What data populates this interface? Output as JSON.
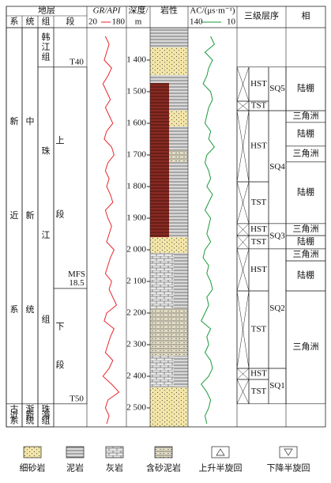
{
  "header": {
    "strata": "地层",
    "system": "系",
    "series": "统",
    "formation": "组",
    "member": "段",
    "gr_title": "GR/API",
    "depth_title": [
      "深度/",
      "m"
    ],
    "lithology": "岩性",
    "ac_title": "AC/(μs·m⁻¹)",
    "sequence": "三级层序",
    "facies": "相"
  },
  "depth_axis": {
    "lim": [
      1297.5,
      2560
    ],
    "ticks": [
      {
        "value": 1400,
        "label": "1 400"
      },
      {
        "value": 1500,
        "label": "1 500"
      },
      {
        "value": 1600,
        "label": "1 600"
      },
      {
        "value": 1700,
        "label": "1 700"
      },
      {
        "value": 1800,
        "label": "1 800"
      },
      {
        "value": 1900,
        "label": "1 900"
      },
      {
        "value": 2000,
        "label": "2 000"
      },
      {
        "value": 2100,
        "label": "2 100"
      },
      {
        "value": 2200,
        "label": "2 200"
      },
      {
        "value": 2300,
        "label": "2 300"
      },
      {
        "value": 2400,
        "label": "2 400"
      },
      {
        "value": 2500,
        "label": "2 500"
      }
    ]
  },
  "curve_depth": [
    1325,
    1350,
    1375,
    1400,
    1425,
    1450,
    1475,
    1500,
    1525,
    1550,
    1575,
    1600,
    1625,
    1650,
    1675,
    1700,
    1725,
    1750,
    1775,
    1800,
    1825,
    1850,
    1875,
    1900,
    1925,
    1950,
    1975,
    2000,
    2025,
    2050,
    2075,
    2100,
    2125,
    2150,
    2175,
    2200,
    2225,
    2250,
    2275,
    2300,
    2325,
    2350,
    2375,
    2400,
    2425,
    2450,
    2475,
    2500,
    2525,
    2550
  ],
  "gr": {
    "lim": [
      20,
      180
    ],
    "color": "#e8262b",
    "values": [
      95,
      110,
      100,
      90,
      120,
      105,
      85,
      100,
      115,
      95,
      110,
      125,
      100,
      90,
      120,
      130,
      105,
      95,
      110,
      100,
      115,
      125,
      95,
      105,
      120,
      110,
      100,
      130,
      115,
      105,
      95,
      120,
      110,
      125,
      140,
      100,
      90,
      130,
      115,
      105,
      95,
      125,
      110,
      85,
      120,
      150,
      105,
      95,
      110,
      100
    ]
  },
  "ac": {
    "lim": [
      140,
      10
    ],
    "color": "#1a9a3a",
    "values": [
      80,
      70,
      95,
      75,
      85,
      90,
      100,
      80,
      75,
      85,
      90,
      95,
      80,
      85,
      70,
      90,
      95,
      85,
      80,
      90,
      75,
      85,
      95,
      80,
      85,
      90,
      80,
      95,
      100,
      85,
      90,
      80,
      75,
      90,
      85,
      95,
      105,
      80,
      90,
      85,
      95,
      80,
      75,
      85,
      105,
      90,
      80,
      85,
      95,
      90
    ]
  },
  "systems": [
    {
      "label": "新近系",
      "top": 1297.5,
      "base": 2487
    },
    {
      "label": "古近系",
      "top": 2487,
      "base": 2560
    }
  ],
  "series": [
    {
      "label": "中新统",
      "top": 1297.5,
      "base": 2487
    },
    {
      "label": "渐新统",
      "top": 2487,
      "base": 2560
    }
  ],
  "formations": [
    {
      "label": "韩江组",
      "top": 1297.5,
      "base": 1422
    },
    {
      "label": "珠江组",
      "top": 1422,
      "base": 2487
    },
    {
      "label": "珠海组",
      "top": 2487,
      "base": 2560
    }
  ],
  "members": [
    {
      "label": "上段",
      "top": 1422,
      "base": 2122
    },
    {
      "label": "下段",
      "top": 2122,
      "base": 2487
    }
  ],
  "markers": [
    {
      "label": "T40",
      "depth": 1422
    },
    {
      "label": "MFS 18.5",
      "depth": 2122
    },
    {
      "label": "T50",
      "depth": 2487
    }
  ],
  "sequences": [
    {
      "label": "SQ5",
      "top": 1422,
      "base": 1560,
      "tracts": [
        {
          "label": "HST",
          "top": 1422,
          "base": 1530
        },
        {
          "label": "TST",
          "top": 1530,
          "base": 1560
        }
      ]
    },
    {
      "label": "SQ4",
      "top": 1560,
      "base": 1917,
      "tracts": [
        {
          "label": "HST",
          "top": 1560,
          "base": 1785
        },
        {
          "label": "TST",
          "top": 1785,
          "base": 1917
        }
      ]
    },
    {
      "label": "SQ3",
      "top": 1917,
      "base": 1997,
      "tracts": [
        {
          "label": "HST",
          "top": 1917,
          "base": 1955
        },
        {
          "label": "TST",
          "top": 1955,
          "base": 1997
        }
      ]
    },
    {
      "label": "SQ2",
      "top": 1997,
      "base": 2375,
      "tracts": [
        {
          "label": "HST",
          "top": 1997,
          "base": 2130
        },
        {
          "label": "TST",
          "top": 2130,
          "base": 2375
        }
      ]
    },
    {
      "label": "SQ1",
      "top": 2375,
      "base": 2487,
      "tracts": [
        {
          "label": "HST",
          "top": 2375,
          "base": 2410
        },
        {
          "label": "TST",
          "top": 2410,
          "base": 2487
        }
      ]
    }
  ],
  "facies": [
    {
      "label": "陆棚",
      "top": 1422,
      "base": 1560
    },
    {
      "label": "三角洲",
      "top": 1560,
      "base": 1597
    },
    {
      "label": "陆棚",
      "top": 1597,
      "base": 1672
    },
    {
      "label": "三角洲",
      "top": 1672,
      "base": 1722
    },
    {
      "label": "陆棚",
      "top": 1722,
      "base": 1917
    },
    {
      "label": "三角洲",
      "top": 1917,
      "base": 1955
    },
    {
      "label": "陆棚",
      "top": 1955,
      "base": 1997
    },
    {
      "label": "三角洲",
      "top": 1997,
      "base": 2035
    },
    {
      "label": "陆棚",
      "top": 2035,
      "base": 2130
    },
    {
      "label": "三角洲",
      "top": 2130,
      "base": 2487
    }
  ],
  "legend": [
    "细砂岩",
    "泥岩",
    "灰岩",
    "含砂泥岩",
    "上升半旋回",
    "下降半旋回"
  ]
}
